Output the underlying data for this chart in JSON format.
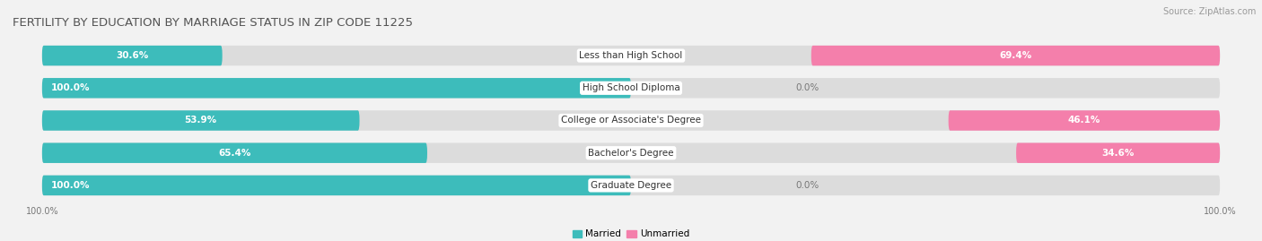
{
  "title": "FERTILITY BY EDUCATION BY MARRIAGE STATUS IN ZIP CODE 11225",
  "source": "Source: ZipAtlas.com",
  "categories": [
    "Less than High School",
    "High School Diploma",
    "College or Associate's Degree",
    "Bachelor's Degree",
    "Graduate Degree"
  ],
  "married": [
    30.6,
    100.0,
    53.9,
    65.4,
    100.0
  ],
  "unmarried": [
    69.4,
    0.0,
    46.1,
    34.6,
    0.0
  ],
  "married_color": "#3dbcbb",
  "unmarried_color": "#f47fab",
  "bg_color": "#f2f2f2",
  "bar_bg_color": "#dcdcdc",
  "title_fontsize": 9.5,
  "label_fontsize": 7.5,
  "value_fontsize": 7.5,
  "tick_fontsize": 7,
  "source_fontsize": 7
}
